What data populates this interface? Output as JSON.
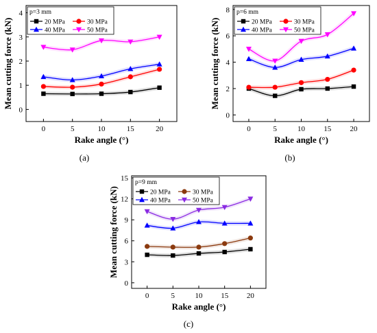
{
  "chart_data": [
    {
      "type": "line",
      "panel_label": "(a)",
      "annotation": "p=3 mm",
      "xlabel": "Rake angle (°)",
      "ylabel": "Mean cutting force (kN)",
      "x": [
        0,
        5,
        10,
        15,
        20
      ],
      "xlim": [
        -3,
        23
      ],
      "ylim": [
        -0.5,
        4.3
      ],
      "xticks": [
        0,
        5,
        10,
        15,
        20
      ],
      "yticks": [
        0,
        1,
        2,
        3,
        4
      ],
      "legend_position": "top-left",
      "series": [
        {
          "name": "20 MPa",
          "color": "#000000",
          "marker": "square",
          "values": [
            0.65,
            0.64,
            0.65,
            0.72,
            0.9
          ]
        },
        {
          "name": "30 MPa",
          "color": "#ff0000",
          "marker": "circle",
          "values": [
            0.95,
            0.92,
            1.05,
            1.35,
            1.66
          ]
        },
        {
          "name": "40 MPa",
          "color": "#0000ff",
          "marker": "triangle-up",
          "values": [
            1.35,
            1.22,
            1.38,
            1.68,
            1.87
          ]
        },
        {
          "name": "50 MPa",
          "color": "#ff00ff",
          "marker": "triangle-down",
          "values": [
            2.58,
            2.47,
            2.85,
            2.8,
            3.0
          ]
        }
      ]
    },
    {
      "type": "line",
      "panel_label": "(b)",
      "annotation": "p=6 mm",
      "xlabel": "Rake angle (°)",
      "ylabel": "Mean cutting force (kN)",
      "x": [
        0,
        5,
        10,
        15,
        20
      ],
      "xlim": [
        -3,
        23
      ],
      "ylim": [
        -0.5,
        8.3
      ],
      "xticks": [
        0,
        5,
        10,
        15,
        20
      ],
      "yticks": [
        0,
        2,
        4,
        6,
        8
      ],
      "legend_position": "top-left",
      "series": [
        {
          "name": "20 MPa",
          "color": "#000000",
          "marker": "square",
          "values": [
            2.0,
            1.45,
            1.95,
            2.0,
            2.15
          ]
        },
        {
          "name": "30 MPa",
          "color": "#ff0000",
          "marker": "circle",
          "values": [
            2.1,
            2.1,
            2.45,
            2.7,
            3.4
          ]
        },
        {
          "name": "40 MPa",
          "color": "#0000ff",
          "marker": "triangle-up",
          "values": [
            4.25,
            3.6,
            4.2,
            4.45,
            5.05
          ]
        },
        {
          "name": "50 MPa",
          "color": "#ff00ff",
          "marker": "triangle-down",
          "values": [
            5.0,
            4.1,
            5.6,
            6.1,
            7.7
          ]
        }
      ]
    },
    {
      "type": "line",
      "panel_label": "(c)",
      "annotation": "p=9 mm",
      "xlabel": "Rake angle (°)",
      "ylabel": "Mean cutting force (kN)",
      "x": [
        0,
        5,
        10,
        15,
        20
      ],
      "xlim": [
        -3,
        23
      ],
      "ylim": [
        -0.8,
        15.3
      ],
      "xticks": [
        0,
        5,
        10,
        15,
        20
      ],
      "yticks": [
        0,
        3,
        6,
        9,
        12,
        15
      ],
      "legend_position": "top-left",
      "series": [
        {
          "name": "20 MPa",
          "color": "#000000",
          "marker": "square",
          "values": [
            4.0,
            3.9,
            4.2,
            4.4,
            4.8
          ]
        },
        {
          "name": "30 MPa",
          "color": "#8b3a0f",
          "marker": "circle",
          "values": [
            5.2,
            5.1,
            5.1,
            5.6,
            6.4
          ]
        },
        {
          "name": "40 MPa",
          "color": "#0000ff",
          "marker": "triangle-up",
          "values": [
            8.2,
            7.8,
            8.7,
            8.5,
            8.5
          ]
        },
        {
          "name": "50 MPa",
          "color": "#8a2be2",
          "marker": "triangle-down",
          "values": [
            10.2,
            9.1,
            10.4,
            10.8,
            12.0
          ]
        }
      ]
    }
  ]
}
